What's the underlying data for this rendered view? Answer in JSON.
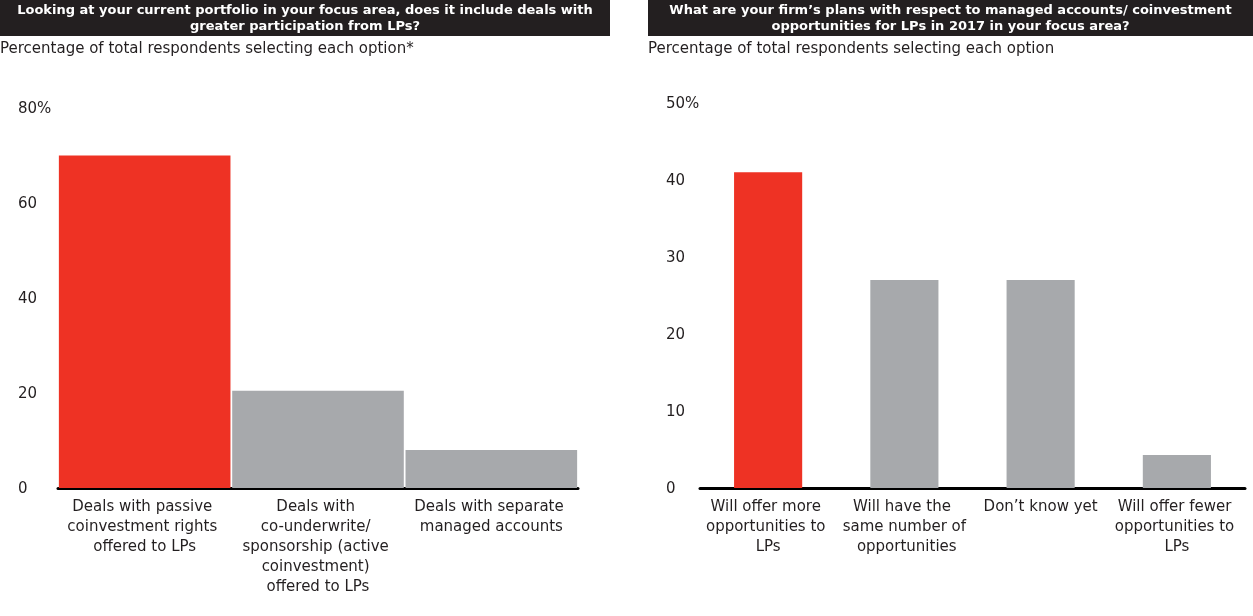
{
  "chart_data": [
    {
      "type": "bar",
      "title": "Looking at your current portfolio in your focus area, does it include deals with greater participation from LPs?",
      "ylabel": "Percentage of total respondents selecting each option*",
      "categories": [
        "Deals with passive coinvestment rights offered to LPs",
        "Deals with co-underwrite/ sponsorship (active coinvestment) offered to LPs",
        "Deals with separate managed accounts"
      ],
      "values": [
        70,
        20.5,
        8
      ],
      "colors": [
        "#ee3224",
        "#a7a9ac",
        "#a7a9ac"
      ],
      "ylim": [
        0,
        80
      ],
      "yticks": [
        0,
        20,
        40,
        60,
        {
          "value": 80,
          "label": "80%"
        }
      ]
    },
    {
      "type": "bar",
      "title": "What are your firm’s plans with respect to managed accounts/ coinvestment opportunities for LPs in 2017 in your focus area?",
      "ylabel": "Percentage of total respondents selecting each option",
      "categories": [
        "Will offer more opportunities to LPs",
        "Will have the same number of opportunities",
        "Don’t know yet",
        "Will offer fewer opportunities to LPs"
      ],
      "values": [
        41,
        27,
        27,
        4.3
      ],
      "colors": [
        "#ee3224",
        "#a7a9ac",
        "#a7a9ac",
        "#a7a9ac"
      ],
      "ylim": [
        0,
        50
      ],
      "yticks": [
        0,
        10,
        20,
        30,
        40,
        {
          "value": 50,
          "label": "50%"
        }
      ]
    }
  ]
}
